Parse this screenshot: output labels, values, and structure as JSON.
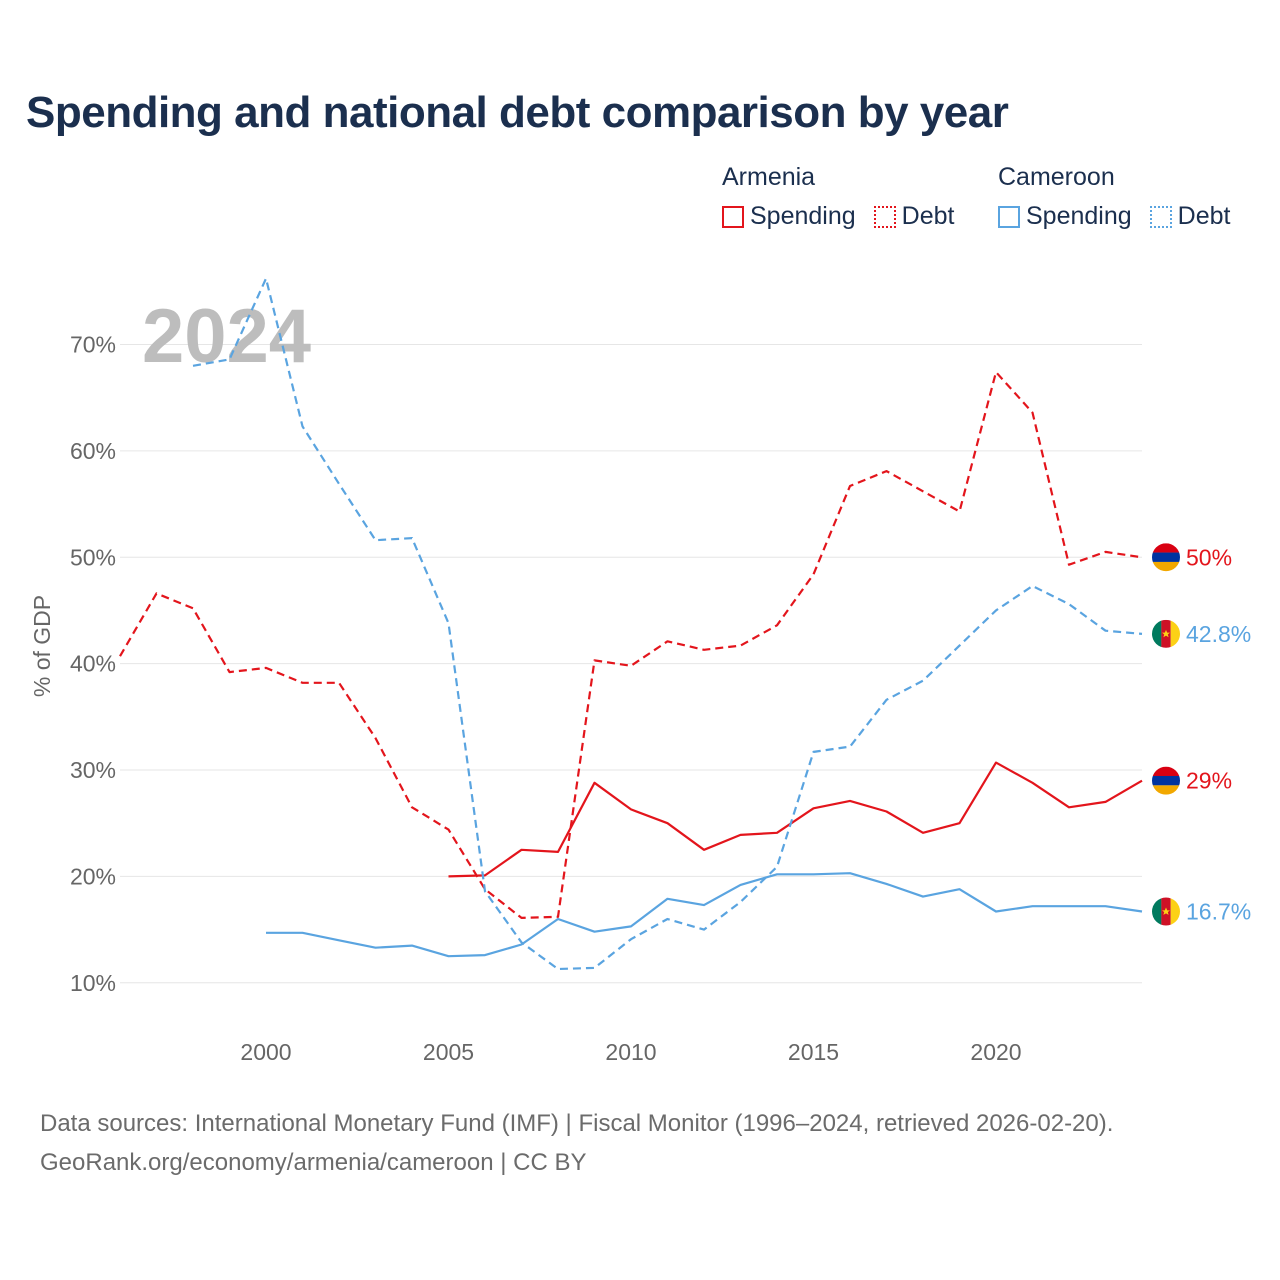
{
  "title": "Spending and national debt comparison by year",
  "colors": {
    "armenia": "#e3151c",
    "cameroon": "#5aa4e0",
    "title": "#1b2f4e",
    "grid": "#e6e6e6"
  },
  "legend": {
    "groups": [
      {
        "country": "Armenia",
        "items": [
          {
            "label": "Spending",
            "style": "solid"
          },
          {
            "label": "Debt",
            "style": "dotted"
          }
        ]
      },
      {
        "country": "Cameroon",
        "items": [
          {
            "label": "Spending",
            "style": "solid"
          },
          {
            "label": "Debt",
            "style": "dotted"
          }
        ]
      }
    ]
  },
  "chart_data": {
    "type": "line",
    "current_year": "2024",
    "ylabel": "% of GDP",
    "xlim": [
      1996,
      2024
    ],
    "ylim": [
      5,
      77
    ],
    "x_ticks": [
      2000,
      2005,
      2010,
      2015,
      2020
    ],
    "y_ticks": [
      10,
      20,
      30,
      40,
      50,
      60,
      70
    ],
    "y_tick_labels": [
      "10%",
      "20%",
      "30%",
      "40%",
      "50%",
      "60%",
      "70%"
    ],
    "series": [
      {
        "name": "Armenia Debt",
        "country": "Armenia",
        "metric": "Debt",
        "dashed": true,
        "flag": "armenia",
        "end_label": "50%",
        "x": [
          1996,
          1997,
          1998,
          1999,
          2000,
          2001,
          2002,
          2003,
          2004,
          2005,
          2006,
          2007,
          2008,
          2009,
          2010,
          2011,
          2012,
          2013,
          2014,
          2015,
          2016,
          2017,
          2018,
          2019,
          2020,
          2021,
          2022,
          2023,
          2024
        ],
        "values": [
          40.7,
          46.6,
          45.2,
          39.2,
          39.6,
          38.2,
          38.2,
          33.0,
          26.5,
          24.4,
          18.8,
          16.1,
          16.2,
          40.3,
          39.8,
          42.1,
          41.3,
          41.7,
          43.6,
          48.4,
          56.7,
          58.1,
          56.2,
          54.3,
          67.4,
          63.6,
          49.3,
          50.5,
          50.0
        ]
      },
      {
        "name": "Armenia Spending",
        "country": "Armenia",
        "metric": "Spending",
        "dashed": false,
        "flag": "armenia",
        "end_label": "29%",
        "x": [
          2005,
          2006,
          2007,
          2008,
          2009,
          2010,
          2011,
          2012,
          2013,
          2014,
          2015,
          2016,
          2017,
          2018,
          2019,
          2020,
          2021,
          2022,
          2023,
          2024
        ],
        "values": [
          20.0,
          20.1,
          22.5,
          22.3,
          28.8,
          26.3,
          25.0,
          22.5,
          23.9,
          24.1,
          26.4,
          27.1,
          26.1,
          24.1,
          25.0,
          30.7,
          28.8,
          26.5,
          27.0,
          29.0
        ]
      },
      {
        "name": "Cameroon Debt",
        "country": "Cameroon",
        "metric": "Debt",
        "dashed": true,
        "flag": "cameroon",
        "end_label": "42.8%",
        "x": [
          1998,
          1999,
          2000,
          2001,
          2002,
          2003,
          2004,
          2005,
          2006,
          2007,
          2008,
          2009,
          2010,
          2011,
          2012,
          2013,
          2014,
          2015,
          2016,
          2017,
          2018,
          2019,
          2020,
          2021,
          2022,
          2023,
          2024
        ],
        "values": [
          68.0,
          68.6,
          76.2,
          62.3,
          56.9,
          51.6,
          51.8,
          43.8,
          18.6,
          13.8,
          11.3,
          11.4,
          14.1,
          16.0,
          15.0,
          17.6,
          20.9,
          31.7,
          32.2,
          36.6,
          38.4,
          41.7,
          45.0,
          47.3,
          45.6,
          43.1,
          42.8
        ]
      },
      {
        "name": "Cameroon Spending",
        "country": "Cameroon",
        "metric": "Spending",
        "dashed": false,
        "flag": "cameroon",
        "end_label": "16.7%",
        "x": [
          2000,
          2001,
          2002,
          2003,
          2004,
          2005,
          2006,
          2007,
          2008,
          2009,
          2010,
          2011,
          2012,
          2013,
          2014,
          2015,
          2016,
          2017,
          2018,
          2019,
          2020,
          2021,
          2022,
          2023,
          2024
        ],
        "values": [
          14.7,
          14.7,
          14.0,
          13.3,
          13.5,
          12.5,
          12.6,
          13.6,
          16.0,
          14.8,
          15.3,
          17.9,
          17.3,
          19.2,
          20.2,
          20.2,
          20.3,
          19.3,
          18.1,
          18.8,
          16.7,
          17.2,
          17.2,
          17.2,
          16.7
        ]
      }
    ]
  },
  "footer": {
    "line1": "Data sources: International Monetary Fund (IMF) | Fiscal Monitor (1996–2024, retrieved 2026-02-20).",
    "line2": "GeoRank.org/economy/armenia/cameroon | CC BY"
  }
}
